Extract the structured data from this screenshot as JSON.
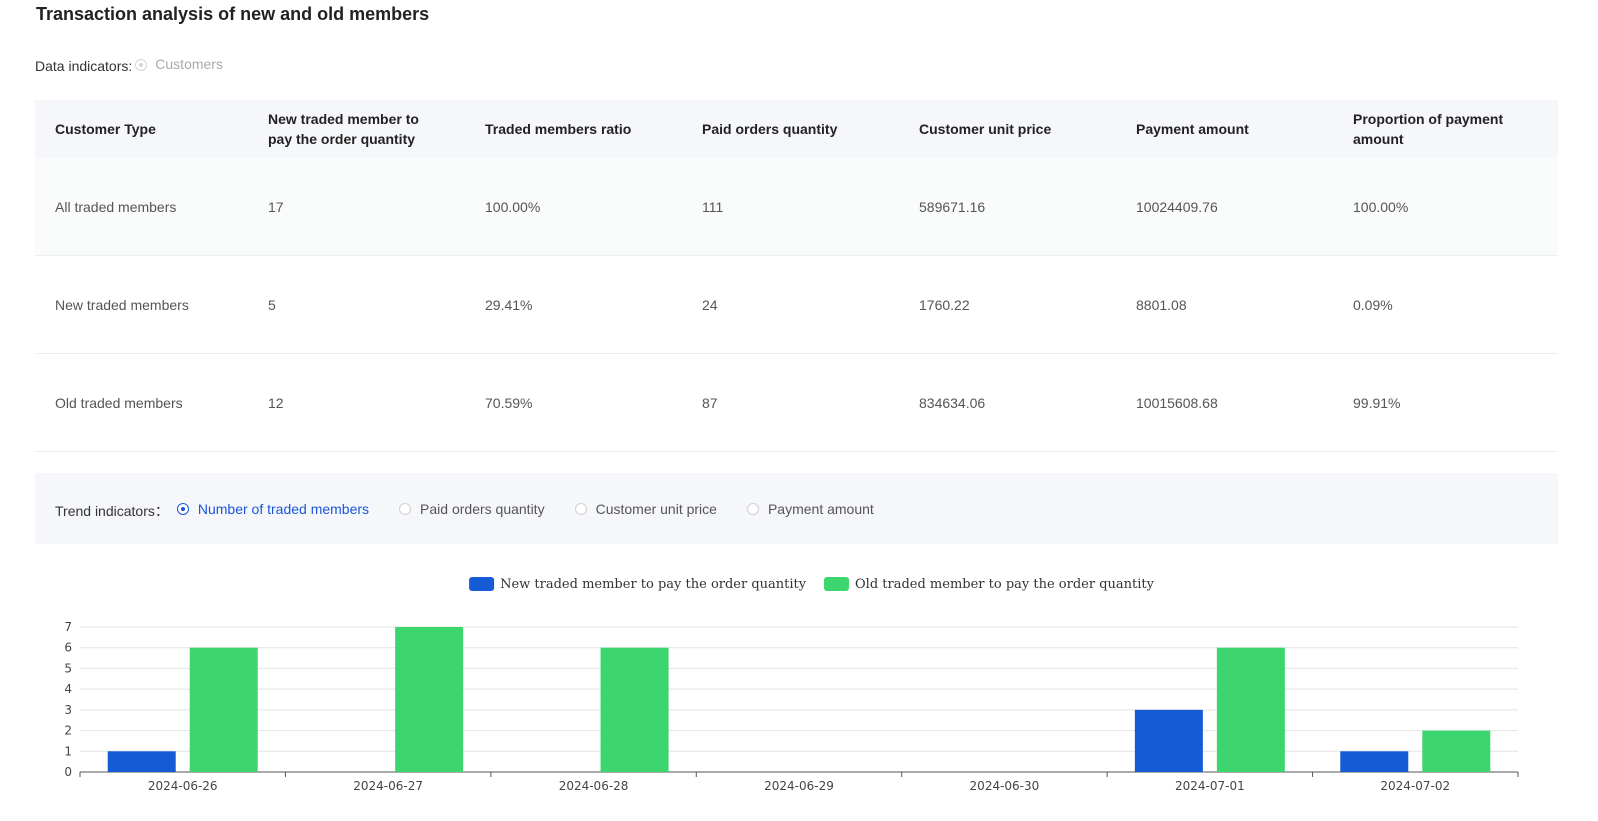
{
  "title": "Transaction analysis of new and old members",
  "data_indicators": {
    "label": "Data indicators:",
    "option": "Customers"
  },
  "table": {
    "headers": [
      "Customer Type",
      "New traded member to pay the order quantity",
      "Traded members ratio",
      "Paid orders quantity",
      "Customer unit price",
      "Payment amount",
      "Proportion of payment amount"
    ],
    "rows": [
      [
        "All traded members",
        "17",
        "100.00%",
        "111",
        "589671.16",
        "10024409.76",
        "100.00%"
      ],
      [
        "New traded members",
        "5",
        "29.41%",
        "24",
        "1760.22",
        "8801.08",
        "0.09%"
      ],
      [
        "Old traded members",
        "12",
        "70.59%",
        "87",
        "834634.06",
        "10015608.68",
        "99.91%"
      ]
    ]
  },
  "trend": {
    "label": "Trend indicators：",
    "options": [
      {
        "label": "Number of traded members",
        "active": true
      },
      {
        "label": "Paid orders quantity",
        "active": false
      },
      {
        "label": "Customer unit price",
        "active": false
      },
      {
        "label": "Payment amount",
        "active": false
      }
    ]
  },
  "colors": {
    "accent": "#1a56db",
    "series_new": "#155bd5",
    "series_old": "#3dd56d"
  },
  "chart_data": {
    "type": "bar",
    "categories": [
      "2024-06-26",
      "2024-06-27",
      "2024-06-28",
      "2024-06-29",
      "2024-06-30",
      "2024-07-01",
      "2024-07-02"
    ],
    "series": [
      {
        "name": "New traded member to pay the order quantity",
        "values": [
          1,
          0,
          0,
          0,
          0,
          3,
          1
        ]
      },
      {
        "name": "Old traded member to pay the order quantity",
        "values": [
          6,
          7,
          6,
          0,
          0,
          6,
          2
        ]
      }
    ],
    "y_ticks": [
      0,
      1,
      2,
      3,
      4,
      5,
      6,
      7
    ],
    "ylim": [
      0,
      7
    ],
    "grid": true,
    "legend": "top-center"
  }
}
